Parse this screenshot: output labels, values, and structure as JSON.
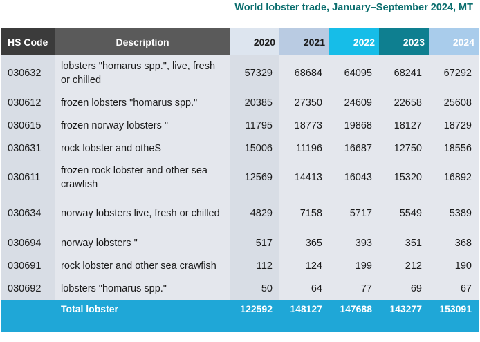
{
  "title": "World lobster trade, January–September 2024, MT",
  "headers": {
    "hs": "HS Code",
    "desc": "Description",
    "years": [
      "2020",
      "2021",
      "2022",
      "2023",
      "2024"
    ]
  },
  "rows": [
    {
      "hs": "030632",
      "desc": "lobsters \"homarus spp.\", live, fresh or chilled",
      "values": [
        "57329",
        "68684",
        "64095",
        "68241",
        "67292"
      ]
    },
    {
      "hs": "030612",
      "desc": "frozen lobsters \"homarus spp.\"",
      "values": [
        "20385",
        "27350",
        "24609",
        "22658",
        "25608"
      ]
    },
    {
      "hs": "030615",
      "desc": "frozen norway lobsters \"",
      "values": [
        "11795",
        "18773",
        "19868",
        "18127",
        "18729"
      ]
    },
    {
      "hs": "030631",
      "desc": "rock lobster and otheS",
      "values": [
        "15006",
        "11196",
        "16687",
        "12750",
        "18556"
      ]
    },
    {
      "hs": "030611",
      "desc": "frozen rock lobster and other sea crawfish",
      "values": [
        "12569",
        "14413",
        "16043",
        "15320",
        "16892"
      ]
    },
    {
      "hs": "030634",
      "desc": "norway lobsters  live, fresh or chilled",
      "values": [
        "4829",
        "7158",
        "5717",
        "5549",
        "5389"
      ]
    },
    {
      "hs": "030694",
      "desc": "norway lobsters \"",
      "values": [
        "517",
        "365",
        "393",
        "351",
        "368"
      ]
    },
    {
      "hs": "030691",
      "desc": "rock lobster and other sea crawfish",
      "values": [
        "112",
        "124",
        "199",
        "212",
        "190"
      ]
    },
    {
      "hs": "030692",
      "desc": "lobsters \"homarus spp.\"",
      "values": [
        "50",
        "64",
        "77",
        "69",
        "67"
      ]
    }
  ],
  "total": {
    "label": "Total lobster",
    "values": [
      "122592",
      "148127",
      "147688",
      "143277",
      "153091"
    ]
  },
  "colors": {
    "title": "#0b6e6e",
    "total_band": "#1fa7d7",
    "header_2022": "#16bde8",
    "header_2023": "#0e7f90"
  }
}
